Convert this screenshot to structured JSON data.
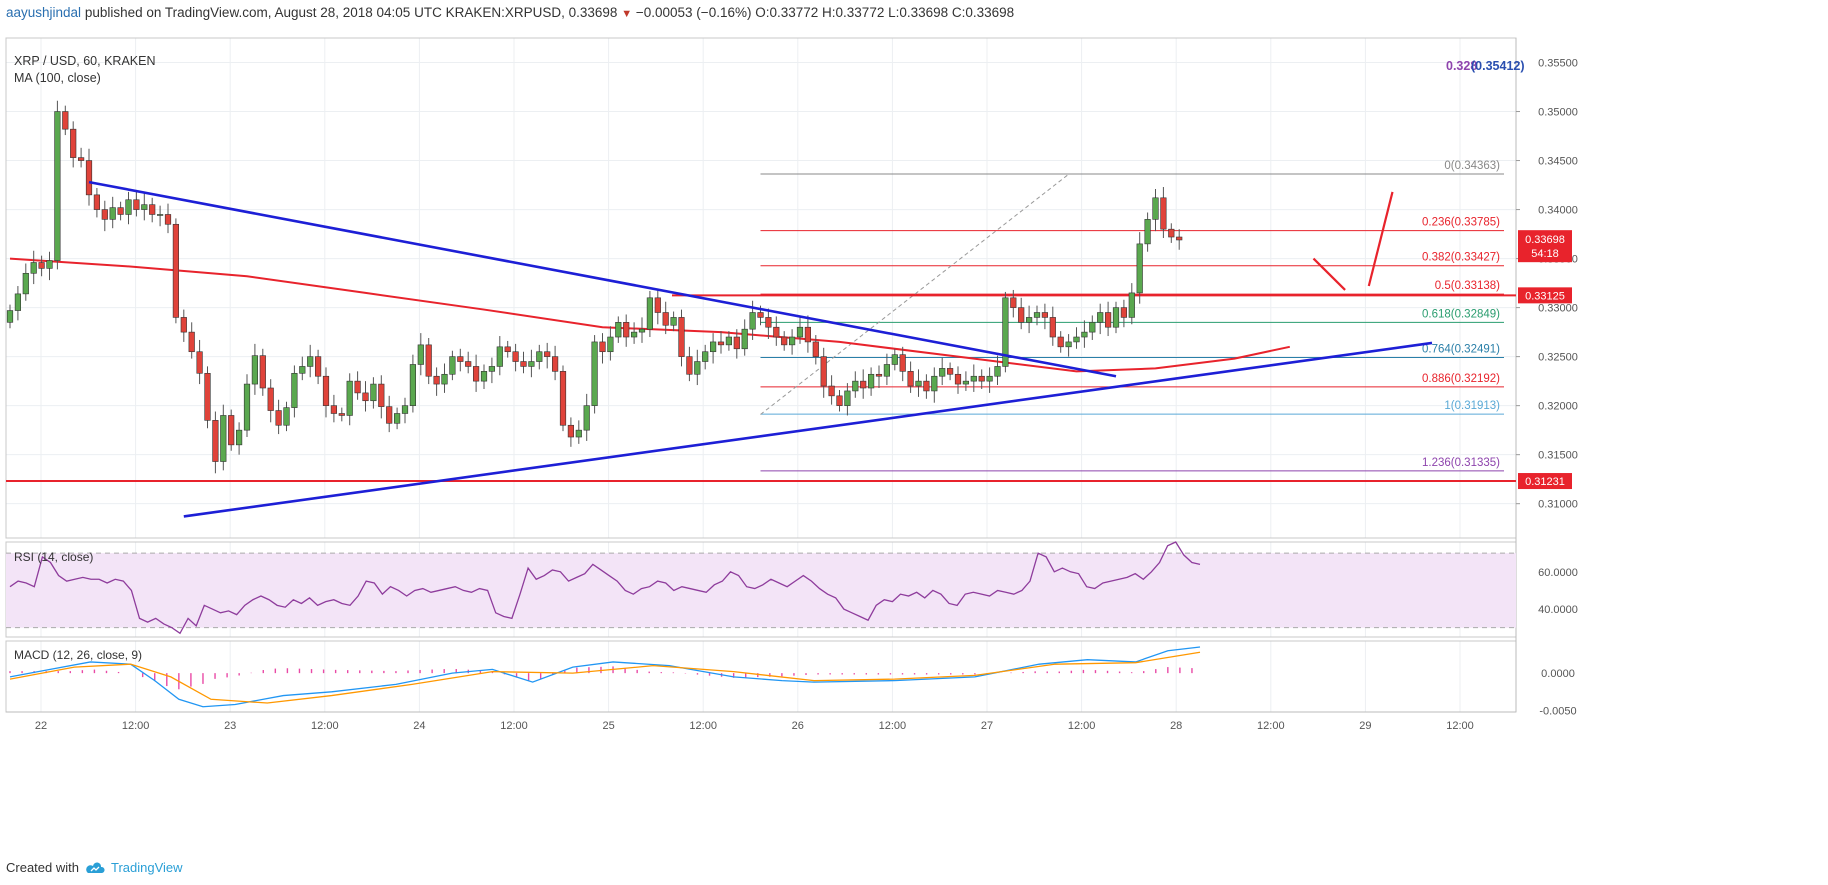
{
  "header": {
    "user": "aayushjindal",
    "published": "published on TradingView.com, August 28, 2018 04:05 UTC",
    "symbol": "KRAKEN:XRPUSD,",
    "price": "0.33698",
    "change": "−0.00053 (−0.16%)",
    "ohlc": "O:0.33772 H:0.33772 L:0.33698 C:0.33698"
  },
  "footer": {
    "created": "Created with",
    "brand": "TradingView"
  },
  "colors": {
    "up": "#5aa84f",
    "down": "#e0433a",
    "ma": "#e8232c",
    "trend": "#1d1fd6",
    "fib_red": "#e8232c",
    "rsi": "#8e3c9c",
    "macd": "#2196f3",
    "signal": "#ff9800",
    "hist": "#e94aa6"
  },
  "chart_data": [
    {
      "type": "candlestick",
      "title": "XRP / USD, 60, KRAKEN",
      "subtitle": "MA (100, close)",
      "ylim": [
        0.3065,
        0.3575
      ],
      "x_ticks": [
        "22",
        "12:00",
        "23",
        "12:00",
        "24",
        "12:00",
        "25",
        "12:00",
        "26",
        "12:00",
        "27",
        "12:00",
        "28",
        "12:00",
        "29",
        "12:00"
      ],
      "y_ticks": [
        "0.31000",
        "0.31500",
        "0.32000",
        "0.32500",
        "0.33000",
        "0.33500",
        "0.34000",
        "0.34500",
        "0.35000",
        "0.35500"
      ],
      "last_price_label": "0.33698",
      "countdown_label": "54:18",
      "top_label_a": "0.328",
      "top_label_b": "(0.35412)",
      "closes": [
        0.3297,
        0.3314,
        0.3335,
        0.3346,
        0.334,
        0.3348,
        0.35,
        0.3482,
        0.3453,
        0.345,
        0.3415,
        0.34,
        0.339,
        0.3402,
        0.3395,
        0.341,
        0.34,
        0.3405,
        0.3395,
        0.3395,
        0.3385,
        0.329,
        0.3275,
        0.3255,
        0.3233,
        0.3185,
        0.3143,
        0.319,
        0.316,
        0.3175,
        0.3222,
        0.3251,
        0.3218,
        0.3195,
        0.318,
        0.3198,
        0.3233,
        0.324,
        0.325,
        0.323,
        0.32,
        0.3192,
        0.319,
        0.3225,
        0.3213,
        0.3205,
        0.3222,
        0.3199,
        0.3182,
        0.3192,
        0.32,
        0.3242,
        0.3262,
        0.323,
        0.3222,
        0.3232,
        0.325,
        0.3245,
        0.324,
        0.3225,
        0.3235,
        0.324,
        0.326,
        0.3255,
        0.3245,
        0.324,
        0.3245,
        0.3255,
        0.325,
        0.3235,
        0.318,
        0.3168,
        0.3175,
        0.32,
        0.3265,
        0.3255,
        0.327,
        0.3285,
        0.327,
        0.3275,
        0.3278,
        0.331,
        0.3295,
        0.3282,
        0.329,
        0.325,
        0.3232,
        0.3245,
        0.3255,
        0.3265,
        0.3262,
        0.327,
        0.3258,
        0.3278,
        0.3295,
        0.329,
        0.328,
        0.327,
        0.3262,
        0.327,
        0.328,
        0.3265,
        0.325,
        0.322,
        0.321,
        0.32,
        0.3215,
        0.3225,
        0.3218,
        0.3232,
        0.323,
        0.3242,
        0.3252,
        0.3235,
        0.322,
        0.3225,
        0.3215,
        0.323,
        0.3238,
        0.3232,
        0.3222,
        0.3225,
        0.323,
        0.3225,
        0.323,
        0.324,
        0.331,
        0.33,
        0.3285,
        0.329,
        0.3295,
        0.329,
        0.327,
        0.326,
        0.3265,
        0.327,
        0.3275,
        0.3285,
        0.3295,
        0.328,
        0.33,
        0.329,
        0.3315,
        0.3365,
        0.339,
        0.3412,
        0.338,
        0.3372,
        0.3369
      ],
      "ma100": {
        "x": [
          0,
          15,
          30,
          45,
          60,
          75,
          90,
          105,
          120,
          135,
          145,
          155,
          162
        ],
        "y": [
          0.335,
          0.3342,
          0.3332,
          0.3315,
          0.3298,
          0.328,
          0.3275,
          0.3265,
          0.325,
          0.3235,
          0.3238,
          0.3248,
          0.326
        ]
      },
      "horizontal_levels": [
        0.33125,
        0.31231
      ],
      "horizontal_level_labels": [
        "0.33125",
        "0.31231"
      ],
      "trendlines": [
        {
          "from": [
            10,
            0.3428
          ],
          "to": [
            140,
            0.323
          ]
        },
        {
          "from": [
            22,
            0.3087
          ],
          "to": [
            180,
            0.3264
          ]
        }
      ],
      "projection_arrows": [
        {
          "from": [
            165,
            0.335
          ],
          "to": [
            169,
            0.3318
          ]
        },
        {
          "from": [
            172,
            0.3322
          ],
          "to": [
            175,
            0.3418
          ]
        }
      ],
      "fibonacci": {
        "start_index": 95,
        "end_index": 172,
        "swing_from": [
          95,
          0.3191
        ],
        "swing_to": [
          134,
          0.3436
        ],
        "levels": [
          {
            "ratio": "0",
            "value": 0.34363,
            "color": "#888888"
          },
          {
            "ratio": "0.236",
            "value": 0.33785,
            "color": "#e8232c"
          },
          {
            "ratio": "0.382",
            "value": 0.33427,
            "color": "#e8232c"
          },
          {
            "ratio": "0.5",
            "value": 0.33138,
            "color": "#e8232c"
          },
          {
            "ratio": "0.618",
            "value": 0.32849,
            "color": "#2a9d6f"
          },
          {
            "ratio": "0.764",
            "value": 0.32491,
            "color": "#2a7fa8"
          },
          {
            "ratio": "0.886",
            "value": 0.32192,
            "color": "#e8232c"
          },
          {
            "ratio": "1",
            "value": 0.31913,
            "color": "#5aa9d6"
          },
          {
            "ratio": "1.236",
            "value": 0.31335,
            "color": "#8e44ad"
          }
        ]
      }
    },
    {
      "type": "line",
      "title": "RSI (14, close)",
      "ylim": [
        25,
        76
      ],
      "y_ticks": [
        "40.0000",
        "60.0000"
      ],
      "bands": [
        30,
        70
      ],
      "values": [
        52,
        55,
        54,
        52,
        68,
        65,
        58,
        55,
        56,
        57,
        56,
        56,
        54,
        56,
        55,
        50,
        35,
        33,
        35,
        32,
        30,
        27,
        35,
        31,
        42,
        40,
        38,
        39,
        37,
        42,
        45,
        47,
        45,
        42,
        41,
        45,
        43,
        46,
        42,
        44,
        45,
        43,
        42,
        47,
        55,
        54,
        48,
        52,
        50,
        47,
        50,
        51,
        49,
        50,
        51,
        52,
        50,
        49,
        51,
        50,
        38,
        36,
        35,
        48,
        62,
        56,
        58,
        61,
        60,
        55,
        57,
        59,
        64,
        61,
        58,
        55,
        50,
        48,
        51,
        52,
        55,
        54,
        50,
        52,
        51,
        50,
        49,
        53,
        55,
        60,
        58,
        52,
        51,
        53,
        56,
        54,
        52,
        55,
        58,
        55,
        51,
        48,
        46,
        40,
        38,
        36,
        34,
        42,
        45,
        44,
        48,
        47,
        49,
        46,
        50,
        48,
        43,
        42,
        48,
        49,
        48,
        47,
        50,
        49,
        48,
        50,
        55,
        70,
        68,
        60,
        62,
        60,
        59,
        52,
        51,
        54,
        55,
        56,
        57,
        59,
        56,
        60,
        65,
        74,
        76,
        69,
        65,
        64
      ]
    },
    {
      "type": "line",
      "title": "MACD (12, 26, close, 9)",
      "ylim": [
        -0.0052,
        0.0043
      ],
      "y_ticks": [
        "0.0000",
        "-0.0050"
      ],
      "macd": {
        "x": [
          0,
          5,
          10,
          15,
          18,
          21,
          24,
          28,
          34,
          40,
          48,
          55,
          60,
          65,
          70,
          75,
          82,
          90,
          96,
          100,
          110,
          120,
          128,
          134,
          140,
          144,
          148
        ],
        "y": [
          -0.0005,
          0.0005,
          0.0015,
          0.0012,
          -0.001,
          -0.0035,
          -0.0045,
          -0.0042,
          -0.003,
          -0.0025,
          -0.0015,
          0.0,
          0.0005,
          -0.0012,
          0.0008,
          0.0015,
          0.001,
          -0.0005,
          -0.001,
          -0.0012,
          -0.001,
          -0.0005,
          0.0012,
          0.0018,
          0.0015,
          0.003,
          0.0035
        ]
      },
      "signal": {
        "x": [
          0,
          8,
          15,
          20,
          25,
          32,
          40,
          50,
          60,
          70,
          80,
          90,
          100,
          110,
          120,
          130,
          140,
          148
        ],
        "y": [
          -0.0008,
          0.0008,
          0.0012,
          -0.0005,
          -0.0035,
          -0.004,
          -0.003,
          -0.0015,
          0.0002,
          0.0,
          0.001,
          0.0002,
          -0.001,
          -0.0008,
          -0.0003,
          0.0012,
          0.0014,
          0.0028
        ]
      }
    }
  ]
}
